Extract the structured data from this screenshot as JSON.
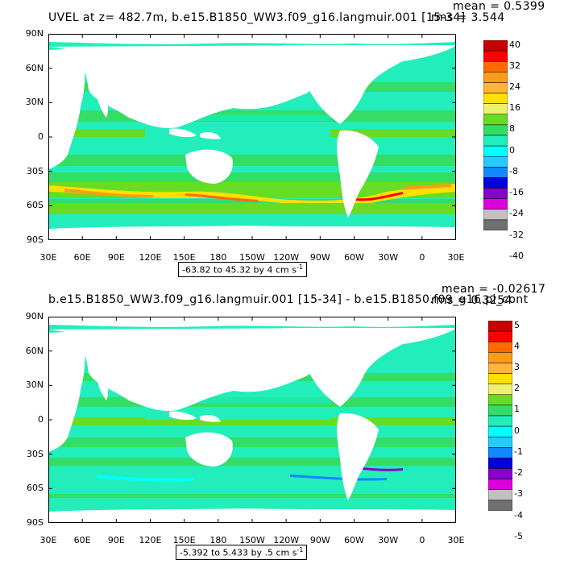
{
  "panels": [
    {
      "title": "UVEL at z= 482.7m, b.e15.B1850_WW3.f09_g16.langmuir.001 [15-34]",
      "mean": "mean = 0.5399",
      "rms": "rms = 3.544",
      "range": "-63.82 to 45.32 by 4 cm s",
      "range_unit_exp": "-1",
      "colorbar_labels": [
        "40",
        "32",
        "24",
        "16",
        "8",
        "0",
        "-8",
        "-16",
        "-24",
        "-32",
        "-40"
      ],
      "colors": [
        "#c80000",
        "#ff0000",
        "#ff6a00",
        "#ff9a1a",
        "#ffb43c",
        "#ffe000",
        "#f0f070",
        "#66dd22",
        "#33dd66",
        "#22eebb",
        "#00ffff",
        "#22ccff",
        "#1188ff",
        "#0000dd",
        "#8800cc",
        "#dd00dd",
        "#c0c0c0",
        "#707070"
      ]
    },
    {
      "title": "b.e15.B1850_WW3.f09_g16.langmuir.001 [15-34] - b.e15.B1850.f09_g16.pi_cont",
      "mean": "mean = -0.02617",
      "rms": "rms = 0.3254",
      "range": "-5.392 to 5.433 by .5 cm s",
      "range_unit_exp": "-1",
      "colorbar_labels": [
        "5",
        "4",
        "3",
        "2",
        "1",
        "0",
        "-1",
        "-2",
        "-3",
        "-4",
        "-5"
      ],
      "colors": [
        "#c80000",
        "#ff0000",
        "#ff6a00",
        "#ff9a1a",
        "#ffb43c",
        "#ffe000",
        "#f0f070",
        "#66dd22",
        "#33dd66",
        "#22eebb",
        "#00ffff",
        "#22ccff",
        "#1188ff",
        "#0000dd",
        "#8800cc",
        "#dd00dd",
        "#c0c0c0",
        "#707070"
      ]
    }
  ],
  "lat_labels": [
    "90N",
    "60N",
    "30N",
    "0",
    "30S",
    "60S",
    "90S"
  ],
  "lon_labels": [
    "30E",
    "60E",
    "90E",
    "120E",
    "150E",
    "180",
    "150W",
    "120W",
    "90W",
    "60W",
    "30W",
    "0",
    "30E"
  ]
}
